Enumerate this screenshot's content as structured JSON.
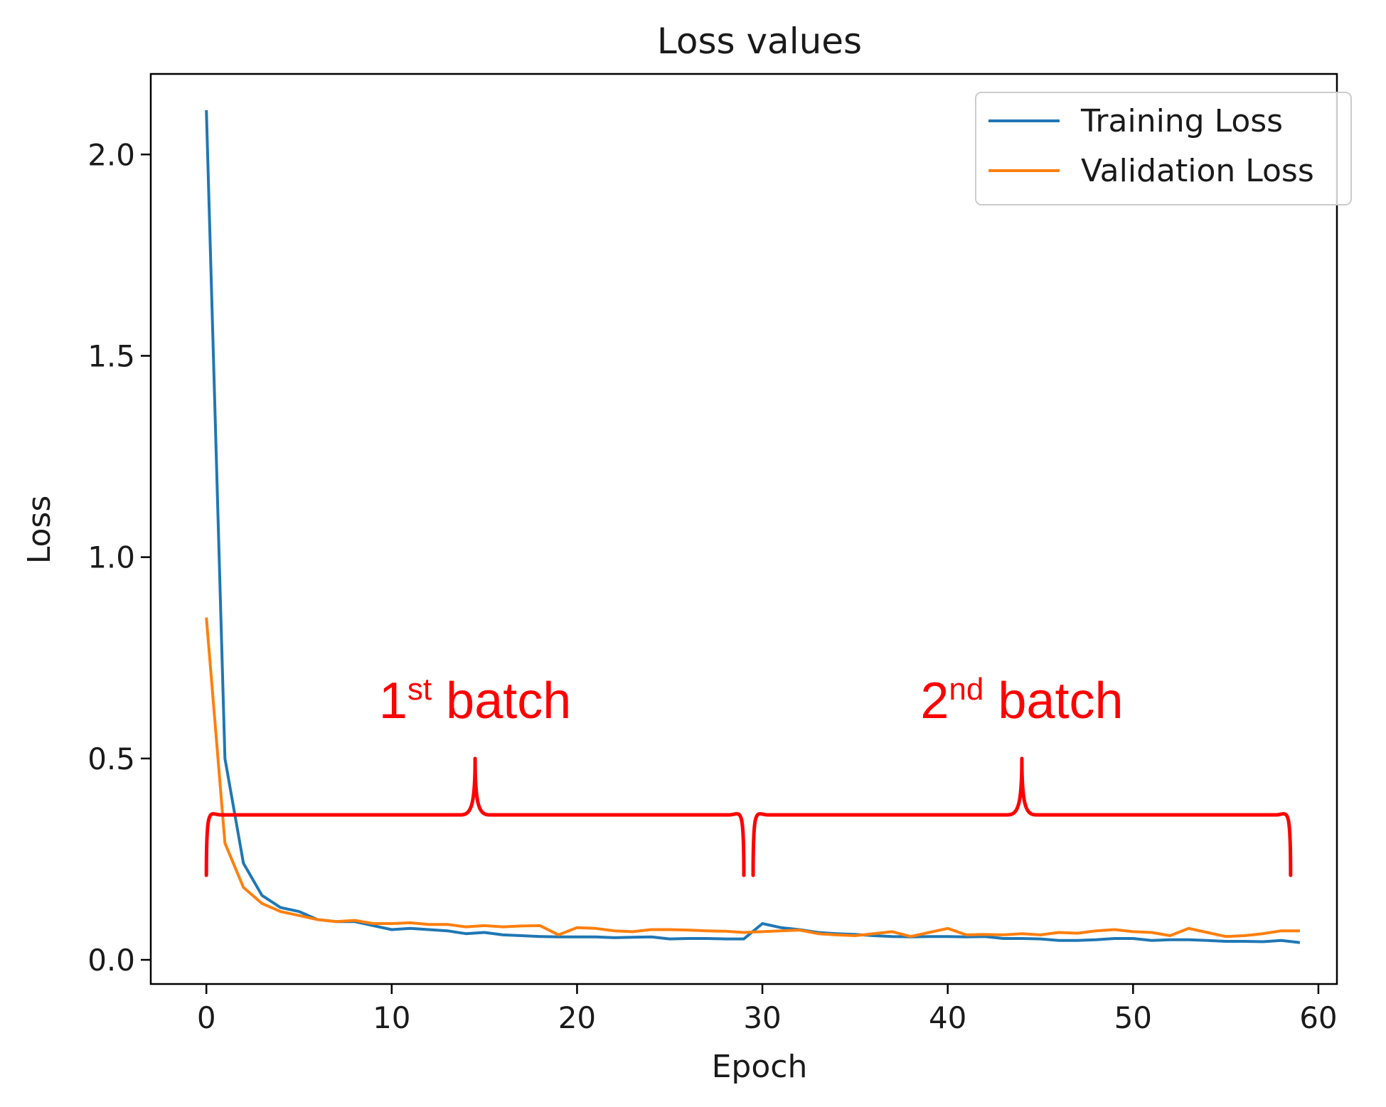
{
  "chart_data": {
    "type": "line",
    "title": "Loss values",
    "xlabel": "Epoch",
    "ylabel": "Loss",
    "xlim": [
      -3,
      61
    ],
    "ylim": [
      -0.06,
      2.2
    ],
    "xticks": [
      0,
      10,
      20,
      30,
      40,
      50,
      60
    ],
    "xtick_labels": [
      "0",
      "10",
      "20",
      "30",
      "40",
      "50",
      "60"
    ],
    "yticks": [
      0.0,
      0.5,
      1.0,
      1.5,
      2.0
    ],
    "ytick_labels": [
      "0.0",
      "0.5",
      "1.0",
      "1.5",
      "2.0"
    ],
    "grid": false,
    "legend_position": "top-right",
    "series": [
      {
        "name": "Training Loss",
        "color": "#1f77b4",
        "x": [
          0,
          1,
          2,
          3,
          4,
          5,
          6,
          7,
          8,
          9,
          10,
          11,
          12,
          13,
          14,
          15,
          16,
          17,
          18,
          19,
          20,
          21,
          22,
          23,
          24,
          25,
          26,
          27,
          28,
          29,
          30,
          31,
          32,
          33,
          34,
          35,
          36,
          37,
          38,
          39,
          40,
          41,
          42,
          43,
          44,
          45,
          46,
          47,
          48,
          49,
          50,
          51,
          52,
          53,
          54,
          55,
          56,
          57,
          58,
          59
        ],
        "values": [
          2.11,
          0.5,
          0.24,
          0.16,
          0.13,
          0.12,
          0.1,
          0.095,
          0.095,
          0.085,
          0.075,
          0.078,
          0.075,
          0.072,
          0.065,
          0.068,
          0.062,
          0.06,
          0.058,
          0.057,
          0.057,
          0.057,
          0.055,
          0.056,
          0.057,
          0.052,
          0.053,
          0.053,
          0.052,
          0.052,
          0.09,
          0.08,
          0.075,
          0.068,
          0.065,
          0.063,
          0.06,
          0.058,
          0.057,
          0.058,
          0.058,
          0.057,
          0.058,
          0.053,
          0.053,
          0.052,
          0.048,
          0.048,
          0.05,
          0.053,
          0.053,
          0.048,
          0.05,
          0.05,
          0.048,
          0.046,
          0.046,
          0.045,
          0.048,
          0.043
        ]
      },
      {
        "name": "Validation Loss",
        "color": "#ff7f0e",
        "x": [
          0,
          1,
          2,
          3,
          4,
          5,
          6,
          7,
          8,
          9,
          10,
          11,
          12,
          13,
          14,
          15,
          16,
          17,
          18,
          19,
          20,
          21,
          22,
          23,
          24,
          25,
          26,
          27,
          28,
          29,
          30,
          31,
          32,
          33,
          34,
          35,
          36,
          37,
          38,
          39,
          40,
          41,
          42,
          43,
          44,
          45,
          46,
          47,
          48,
          49,
          50,
          51,
          52,
          53,
          54,
          55,
          56,
          57,
          58,
          59
        ],
        "values": [
          0.85,
          0.29,
          0.18,
          0.14,
          0.12,
          0.11,
          0.1,
          0.095,
          0.098,
          0.09,
          0.09,
          0.092,
          0.088,
          0.088,
          0.082,
          0.085,
          0.082,
          0.084,
          0.085,
          0.062,
          0.08,
          0.078,
          0.072,
          0.07,
          0.075,
          0.075,
          0.074,
          0.072,
          0.071,
          0.068,
          0.07,
          0.072,
          0.074,
          0.065,
          0.062,
          0.06,
          0.065,
          0.07,
          0.058,
          0.068,
          0.078,
          0.062,
          0.063,
          0.062,
          0.065,
          0.062,
          0.068,
          0.066,
          0.072,
          0.075,
          0.07,
          0.068,
          0.06,
          0.078,
          0.068,
          0.058,
          0.06,
          0.065,
          0.072,
          0.072
        ]
      }
    ],
    "annotations": [
      {
        "base": "1",
        "sup": "st",
        "rest": " batch",
        "x_start": 0,
        "x_end": 29,
        "peak_x": 14.5,
        "brace_y": 0.36,
        "tip_y": 0.5,
        "end_y": 0.21,
        "label_y": 0.6
      },
      {
        "base": "2",
        "sup": "nd",
        "rest": " batch",
        "x_start": 29.5,
        "x_end": 58.5,
        "peak_x": 44,
        "brace_y": 0.36,
        "tip_y": 0.5,
        "end_y": 0.21,
        "label_y": 0.6
      }
    ],
    "annotation_color": "#ff0000"
  }
}
